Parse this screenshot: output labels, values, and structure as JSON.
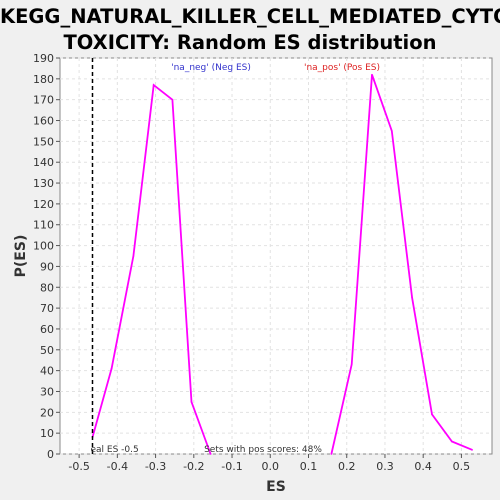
{
  "chart_data": {
    "type": "line",
    "title_lines": [
      "KEGG_NATURAL_KILLER_CELL_MEDIATED_CYTO",
      "TOXICITY: Random ES distribution"
    ],
    "xlabel": "ES",
    "ylabel": "P(ES)",
    "xlim": [
      -0.55,
      0.58
    ],
    "ylim": [
      0,
      190
    ],
    "x_ticks": [
      -0.5,
      -0.4,
      -0.3,
      -0.2,
      -0.1,
      0.0,
      0.1,
      0.2,
      0.3,
      0.4,
      0.5
    ],
    "x_tick_labels": [
      "-0.5",
      "-0.4",
      "-0.3",
      "-0.2",
      "-0.1",
      "0.0",
      "0.1",
      "0.2",
      "0.3",
      "0.4",
      "0.5"
    ],
    "y_ticks": [
      0,
      10,
      20,
      30,
      40,
      50,
      60,
      70,
      80,
      90,
      100,
      110,
      120,
      130,
      140,
      150,
      160,
      170,
      180,
      190
    ],
    "grid": true,
    "series": [
      {
        "name": "'na_neg' (Neg ES)",
        "color": "#ff00ff",
        "x": [
          -0.465,
          -0.415,
          -0.358,
          -0.305,
          -0.256,
          -0.206,
          -0.156
        ],
        "y": [
          8,
          41,
          95,
          177,
          170,
          25,
          0
        ]
      },
      {
        "name": "'na_pos' (Pos ES)",
        "color": "#ff00ff",
        "x": [
          0.16,
          0.213,
          0.266,
          0.318,
          0.371,
          0.423,
          0.475,
          0.528
        ],
        "y": [
          0,
          43,
          182,
          155,
          75,
          19,
          6,
          2
        ]
      }
    ],
    "legend": [
      {
        "label": "'na_neg' (Neg ES)",
        "color": "#3333cc"
      },
      {
        "label": "'na_pos' (Pos ES)",
        "color": "#dd2222"
      }
    ],
    "real_es": {
      "x": -0.465,
      "label": "eal ES -0.5"
    },
    "annotation": "Sets with pos scores: 48%"
  },
  "colors": {
    "background": "#f0f0f0",
    "plot_bg": "#ffffff",
    "grid": "#e2e2e2",
    "curve": "#ff00ff"
  }
}
